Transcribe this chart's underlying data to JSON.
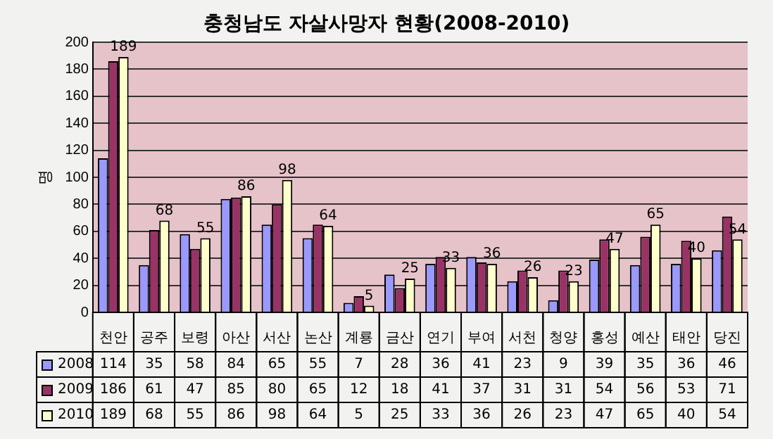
{
  "chart_data": {
    "type": "bar",
    "title": "충청남도 자살사망자 현황(2008-2010)",
    "ylabel": "명",
    "categories": [
      "천안",
      "공주",
      "보령",
      "아산",
      "서산",
      "논산",
      "계룡",
      "금산",
      "연기",
      "부여",
      "서천",
      "청양",
      "홍성",
      "예산",
      "태안",
      "당진"
    ],
    "series": [
      {
        "name": "2008",
        "color": "#9999ff",
        "values": [
          114,
          35,
          58,
          84,
          65,
          55,
          7,
          28,
          36,
          41,
          23,
          9,
          39,
          35,
          36,
          46
        ]
      },
      {
        "name": "2009",
        "color": "#993366",
        "values": [
          186,
          61,
          47,
          85,
          80,
          65,
          12,
          18,
          41,
          37,
          31,
          31,
          54,
          56,
          53,
          71
        ]
      },
      {
        "name": "2010",
        "color": "#ffffcc",
        "values": [
          189,
          68,
          55,
          86,
          98,
          64,
          5,
          25,
          33,
          36,
          26,
          23,
          47,
          65,
          40,
          54
        ]
      }
    ],
    "annotations": [
      {
        "text": "189",
        "x": "천안",
        "y": 189
      },
      {
        "text": "68",
        "x": "공주",
        "y": 68
      },
      {
        "text": "55",
        "x": "보령",
        "y": 55
      },
      {
        "text": "86",
        "x": "아산",
        "y": 86
      },
      {
        "text": "98",
        "x": "서산",
        "y": 98
      },
      {
        "text": "64",
        "x": "논산",
        "y": 64
      },
      {
        "text": "5",
        "x": "계룡",
        "y": 5
      },
      {
        "text": "25",
        "x": "금산",
        "y": 25
      },
      {
        "text": "33",
        "x": "연기",
        "y": 33
      },
      {
        "text": "36",
        "x": "부여",
        "y": 36
      },
      {
        "text": "26",
        "x": "서천",
        "y": 26
      },
      {
        "text": "23",
        "x": "청양",
        "y": 23
      },
      {
        "text": "47",
        "x": "홍성",
        "y": 47
      },
      {
        "text": "65",
        "x": "예산",
        "y": 65
      },
      {
        "text": "40",
        "x": "태안",
        "y": 40
      },
      {
        "text": "54",
        "x": "당진",
        "y": 54
      }
    ],
    "ylim": [
      0,
      200
    ],
    "yticks": [
      0,
      20,
      40,
      60,
      80,
      100,
      120,
      140,
      160,
      180,
      200
    ],
    "grid": "y",
    "legend": "bottom left",
    "data_labels": true
  }
}
